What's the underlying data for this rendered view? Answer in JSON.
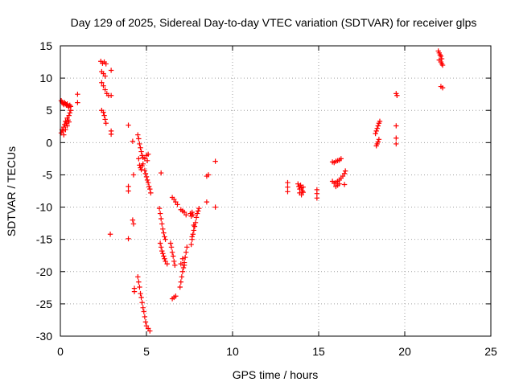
{
  "chart_data": {
    "type": "scatter",
    "title": "Day 129 of 2025, Sidereal Day-to-day VTEC variation (SDTVAR) for receiver glps",
    "xlabel": "GPS time / hours",
    "ylabel": "SDTVAR / TECUs",
    "xlim": [
      0,
      25
    ],
    "ylim": [
      -30,
      15
    ],
    "grid": true,
    "marker": "plus",
    "series": [
      {
        "name": "SDTVAR",
        "color": "#ff0000",
        "points": [
          [
            0.05,
            6.5
          ],
          [
            0.1,
            6.3
          ],
          [
            0.15,
            6.1
          ],
          [
            0.2,
            5.9
          ],
          [
            0.25,
            6.2
          ],
          [
            0.3,
            6.0
          ],
          [
            0.35,
            5.8
          ],
          [
            0.4,
            6.0
          ],
          [
            0.45,
            5.7
          ],
          [
            0.5,
            5.5
          ],
          [
            0.55,
            5.8
          ],
          [
            0.6,
            5.6
          ],
          [
            0.05,
            1.5
          ],
          [
            0.1,
            2.0
          ],
          [
            0.15,
            1.8
          ],
          [
            0.2,
            2.4
          ],
          [
            0.25,
            2.8
          ],
          [
            0.3,
            3.3
          ],
          [
            0.35,
            3.0
          ],
          [
            0.4,
            3.8
          ],
          [
            0.45,
            3.5
          ],
          [
            0.5,
            4.2
          ],
          [
            0.55,
            4.6
          ],
          [
            0.6,
            5.0
          ],
          [
            0.2,
            1.2
          ],
          [
            0.3,
            2.0
          ],
          [
            0.4,
            2.6
          ],
          [
            0.5,
            3.2
          ],
          [
            1.0,
            7.5
          ],
          [
            1.0,
            6.2
          ],
          [
            2.35,
            12.6
          ],
          [
            2.45,
            12.3
          ],
          [
            2.55,
            12.5
          ],
          [
            2.65,
            12.2
          ],
          [
            2.4,
            11.0
          ],
          [
            2.5,
            10.7
          ],
          [
            2.6,
            10.3
          ],
          [
            2.4,
            9.3
          ],
          [
            2.5,
            8.8
          ],
          [
            2.6,
            8.2
          ],
          [
            2.7,
            7.6
          ],
          [
            2.8,
            7.3
          ],
          [
            2.95,
            7.3
          ],
          [
            2.95,
            11.2
          ],
          [
            2.4,
            5.0
          ],
          [
            2.5,
            4.7
          ],
          [
            2.55,
            4.2
          ],
          [
            2.6,
            3.6
          ],
          [
            2.65,
            3.0
          ],
          [
            2.95,
            1.8
          ],
          [
            2.95,
            1.3
          ],
          [
            2.9,
            -14.2
          ],
          [
            3.95,
            2.7
          ],
          [
            3.95,
            -6.8
          ],
          [
            3.95,
            -7.5
          ],
          [
            3.95,
            -14.9
          ],
          [
            4.2,
            0.2
          ],
          [
            4.25,
            -5.0
          ],
          [
            4.2,
            -12.0
          ],
          [
            4.25,
            -12.6
          ],
          [
            4.3,
            -22.6
          ],
          [
            4.3,
            -23.1
          ],
          [
            4.5,
            1.2
          ],
          [
            4.55,
            0.6
          ],
          [
            4.6,
            -0.2
          ],
          [
            4.65,
            -0.8
          ],
          [
            4.7,
            -1.4
          ],
          [
            4.75,
            -2.0
          ],
          [
            4.8,
            -2.3
          ],
          [
            4.9,
            -2.5
          ],
          [
            5.0,
            -2.0
          ],
          [
            5.05,
            -2.8
          ],
          [
            5.1,
            -1.8
          ],
          [
            4.55,
            -2.5
          ],
          [
            4.6,
            -3.5
          ],
          [
            4.65,
            -3.9
          ],
          [
            4.7,
            -4.2
          ],
          [
            4.75,
            -3.6
          ],
          [
            4.8,
            -3.3
          ],
          [
            4.9,
            -4.3
          ],
          [
            4.95,
            -4.8
          ],
          [
            5.0,
            -5.3
          ],
          [
            5.05,
            -5.8
          ],
          [
            5.1,
            -6.2
          ],
          [
            5.15,
            -6.8
          ],
          [
            5.2,
            -7.2
          ],
          [
            5.25,
            -7.8
          ],
          [
            4.5,
            -20.8
          ],
          [
            4.55,
            -21.6
          ],
          [
            4.6,
            -22.4
          ],
          [
            4.65,
            -23.4
          ],
          [
            4.7,
            -24.0
          ],
          [
            4.75,
            -24.8
          ],
          [
            4.8,
            -25.6
          ],
          [
            4.85,
            -26.2
          ],
          [
            4.9,
            -27.0
          ],
          [
            4.95,
            -27.8
          ],
          [
            5.0,
            -28.4
          ],
          [
            5.1,
            -28.8
          ],
          [
            5.2,
            -29.2
          ],
          [
            5.85,
            -4.7
          ],
          [
            5.75,
            -10.2
          ],
          [
            5.8,
            -11.0
          ],
          [
            5.85,
            -11.8
          ],
          [
            5.9,
            -12.6
          ],
          [
            5.95,
            -13.4
          ],
          [
            6.0,
            -14.0
          ],
          [
            6.05,
            -14.6
          ],
          [
            6.1,
            -15.0
          ],
          [
            5.8,
            -15.6
          ],
          [
            5.85,
            -16.2
          ],
          [
            5.9,
            -16.8
          ],
          [
            5.95,
            -17.2
          ],
          [
            6.0,
            -17.6
          ],
          [
            6.05,
            -18.0
          ],
          [
            6.1,
            -18.4
          ],
          [
            6.2,
            -18.8
          ],
          [
            6.5,
            -8.5
          ],
          [
            6.6,
            -8.8
          ],
          [
            6.7,
            -9.2
          ],
          [
            6.8,
            -9.6
          ],
          [
            6.4,
            -15.6
          ],
          [
            6.45,
            -16.2
          ],
          [
            6.5,
            -17.0
          ],
          [
            6.55,
            -17.6
          ],
          [
            6.6,
            -18.4
          ],
          [
            6.65,
            -19.0
          ],
          [
            6.5,
            -24.2
          ],
          [
            6.6,
            -24.0
          ],
          [
            6.7,
            -23.8
          ],
          [
            7.0,
            -10.4
          ],
          [
            7.1,
            -10.6
          ],
          [
            7.2,
            -10.8
          ],
          [
            7.3,
            -11.2
          ],
          [
            6.95,
            -22.4
          ],
          [
            7.0,
            -21.6
          ],
          [
            7.05,
            -20.8
          ],
          [
            7.1,
            -20.0
          ],
          [
            7.15,
            -19.4
          ],
          [
            7.2,
            -18.6
          ],
          [
            7.25,
            -17.8
          ],
          [
            7.3,
            -17.0
          ],
          [
            7.35,
            -16.2
          ],
          [
            7.0,
            -18.8
          ],
          [
            7.1,
            -18.0
          ],
          [
            7.2,
            -19.0
          ],
          [
            7.55,
            -11.0
          ],
          [
            7.6,
            -11.4
          ],
          [
            7.65,
            -10.8
          ],
          [
            7.7,
            -11.2
          ],
          [
            7.6,
            -15.8
          ],
          [
            7.65,
            -15.0
          ],
          [
            7.7,
            -14.2
          ],
          [
            7.75,
            -13.6
          ],
          [
            7.8,
            -13.0
          ],
          [
            7.85,
            -12.4
          ],
          [
            7.9,
            -11.6
          ],
          [
            7.95,
            -11.0
          ],
          [
            8.0,
            -10.6
          ],
          [
            8.05,
            -10.2
          ],
          [
            7.65,
            -14.6
          ],
          [
            7.75,
            -12.8
          ],
          [
            8.5,
            -5.2
          ],
          [
            8.6,
            -5.0
          ],
          [
            8.5,
            -9.2
          ],
          [
            9.0,
            -2.9
          ],
          [
            9.0,
            -10.0
          ],
          [
            13.2,
            -6.2
          ],
          [
            13.2,
            -6.9
          ],
          [
            13.2,
            -7.6
          ],
          [
            13.8,
            -6.4
          ],
          [
            13.85,
            -6.8
          ],
          [
            13.9,
            -7.2
          ],
          [
            13.95,
            -6.6
          ],
          [
            14.0,
            -7.0
          ],
          [
            14.05,
            -7.5
          ],
          [
            14.1,
            -6.9
          ],
          [
            13.9,
            -7.8
          ],
          [
            14.0,
            -8.1
          ],
          [
            14.1,
            -7.7
          ],
          [
            14.9,
            -7.3
          ],
          [
            14.9,
            -7.9
          ],
          [
            14.9,
            -8.6
          ],
          [
            15.8,
            -3.0
          ],
          [
            15.9,
            -3.1
          ],
          [
            16.0,
            -2.9
          ],
          [
            16.1,
            -2.8
          ],
          [
            16.2,
            -2.7
          ],
          [
            16.3,
            -2.5
          ],
          [
            15.8,
            -6.0
          ],
          [
            15.9,
            -6.3
          ],
          [
            16.0,
            -6.2
          ],
          [
            16.1,
            -6.0
          ],
          [
            16.2,
            -5.8
          ],
          [
            16.3,
            -5.5
          ],
          [
            16.4,
            -5.2
          ],
          [
            16.5,
            -4.8
          ],
          [
            16.55,
            -4.4
          ],
          [
            16.0,
            -6.8
          ],
          [
            16.1,
            -6.6
          ],
          [
            16.2,
            -6.4
          ],
          [
            16.5,
            -6.5
          ],
          [
            18.35,
            -0.5
          ],
          [
            18.4,
            -0.2
          ],
          [
            18.45,
            0.1
          ],
          [
            18.5,
            0.5
          ],
          [
            18.3,
            1.4
          ],
          [
            18.35,
            1.8
          ],
          [
            18.4,
            2.2
          ],
          [
            18.45,
            2.6
          ],
          [
            18.5,
            3.0
          ],
          [
            18.55,
            3.3
          ],
          [
            19.5,
            7.6
          ],
          [
            19.55,
            7.3
          ],
          [
            19.5,
            2.6
          ],
          [
            19.5,
            0.7
          ],
          [
            19.5,
            -0.2
          ],
          [
            21.95,
            14.2
          ],
          [
            22.0,
            13.9
          ],
          [
            22.05,
            13.6
          ],
          [
            22.1,
            13.4
          ],
          [
            22.15,
            13.0
          ],
          [
            22.0,
            12.8
          ],
          [
            22.1,
            12.5
          ],
          [
            22.15,
            12.2
          ],
          [
            22.2,
            12.0
          ],
          [
            22.1,
            8.7
          ],
          [
            22.2,
            8.5
          ]
        ]
      }
    ]
  },
  "axes": {
    "x_ticks": [
      "0",
      "5",
      "10",
      "15",
      "20",
      "25"
    ],
    "y_ticks": [
      "15",
      "10",
      "5",
      "0",
      "-5",
      "-10",
      "-15",
      "-20",
      "-25",
      "-30"
    ]
  }
}
